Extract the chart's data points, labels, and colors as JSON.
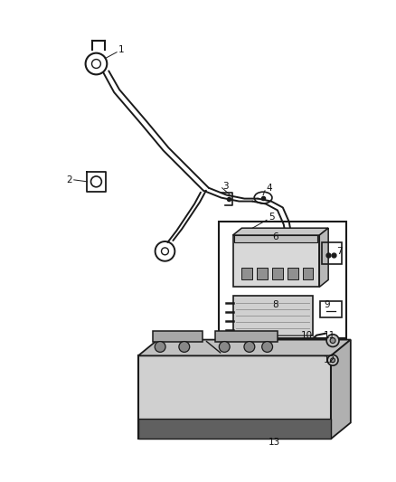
{
  "bg_color": "#ffffff",
  "fig_width": 4.38,
  "fig_height": 5.33,
  "dpi": 100,
  "dark": "#1a1a1a",
  "gray_light": "#cccccc",
  "gray_mid": "#aaaaaa",
  "gray_dark": "#888888",
  "component_fill": "#e8e8e8",
  "battery_top": "#bebebe",
  "battery_side": "#a0a0a0",
  "battery_front": "#d0d0d0",
  "label_fs": 7.0
}
